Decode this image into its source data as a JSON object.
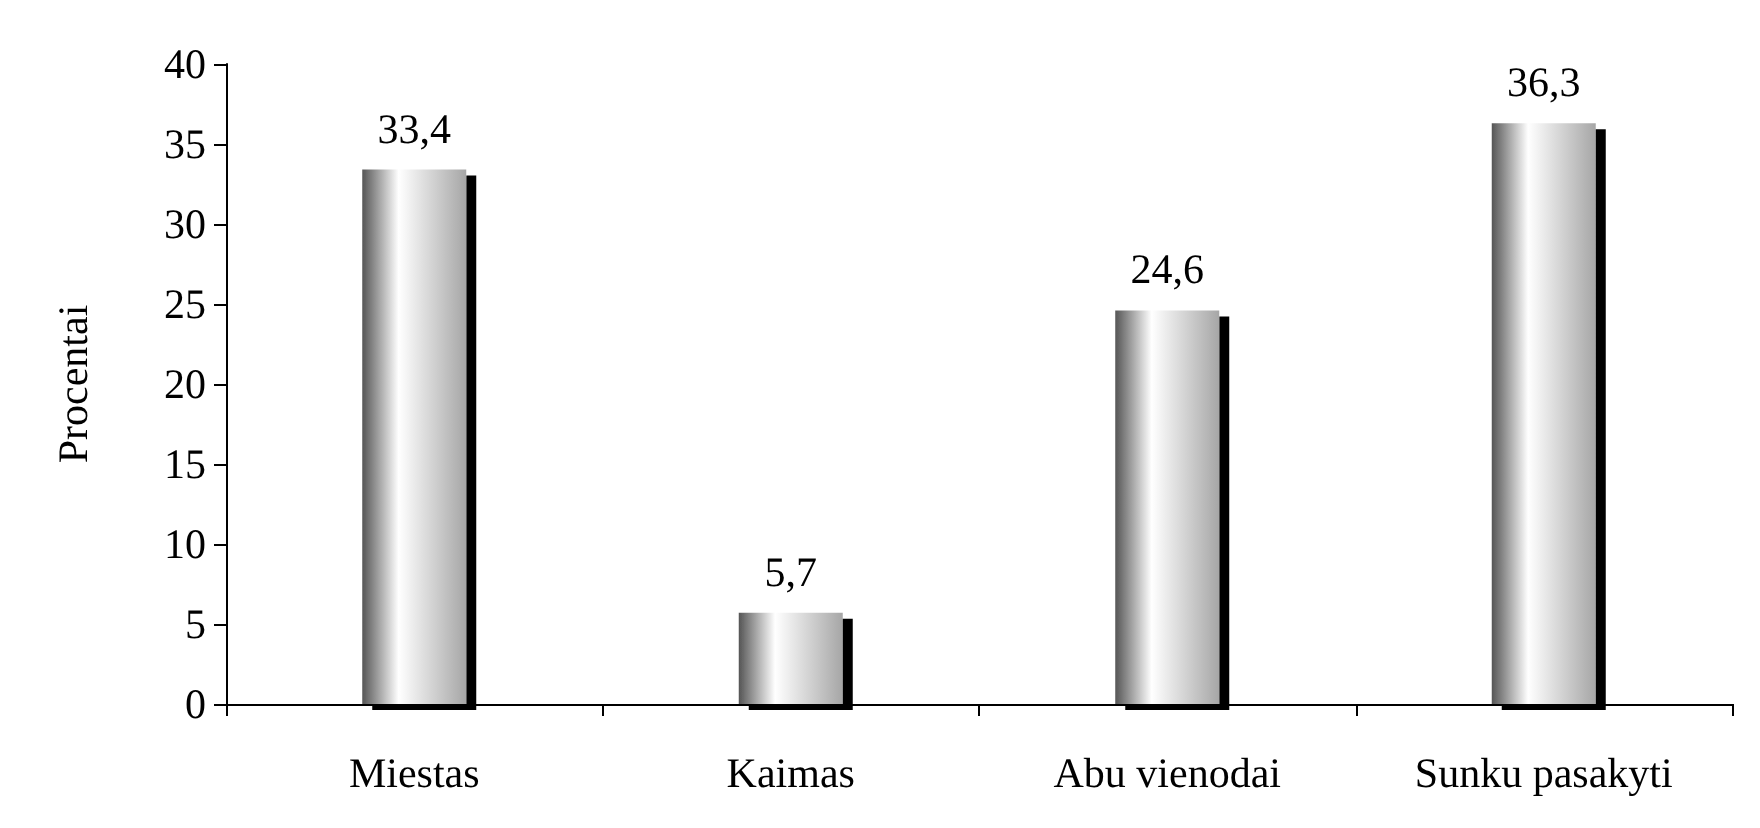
{
  "chart_data": {
    "type": "bar",
    "ylabel": "Procentai",
    "categories": [
      "Miestas",
      "Kaimas",
      "Abu vienodai",
      "Sunku pasakyti"
    ],
    "values": [
      33.4,
      5.7,
      24.6,
      36.3
    ],
    "value_labels": [
      "33,4",
      "5,7",
      "24,6",
      "36,3"
    ],
    "color": "#a6a6a6",
    "ylim": [
      0,
      40
    ],
    "yticks": [
      0,
      5,
      10,
      15,
      20,
      25,
      30,
      35,
      40
    ],
    "grid": false
  }
}
